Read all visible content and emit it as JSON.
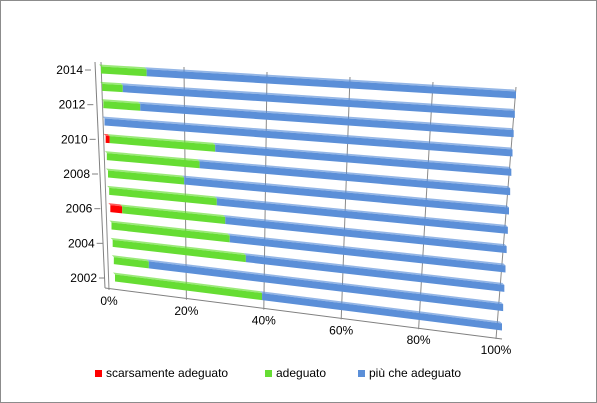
{
  "chart_data": {
    "type": "bar",
    "orientation": "horizontal",
    "stacked": "100%",
    "perspective": "3d",
    "categories": [
      "2002",
      "2003",
      "2004",
      "2005",
      "2006",
      "2007",
      "2008",
      "2009",
      "2010",
      "2011",
      "2012",
      "2013",
      "2014"
    ],
    "y_tick_labels": [
      "2002",
      "2004",
      "2006",
      "2008",
      "2010",
      "2012",
      "2014"
    ],
    "x_tick_labels": [
      "0%",
      "20%",
      "40%",
      "60%",
      "80%",
      "100%"
    ],
    "xlim": [
      0,
      100
    ],
    "grid": true,
    "legend_position": "bottom",
    "series": [
      {
        "name": "scarsamente adeguato",
        "color": "#ff0000",
        "values": [
          0,
          0,
          0,
          0,
          3,
          0,
          0,
          0,
          1,
          0,
          0,
          0,
          0
        ]
      },
      {
        "name": "adeguato",
        "color": "#66dd33",
        "values": [
          38,
          9,
          34,
          30,
          26,
          27,
          19,
          23,
          26,
          0,
          9,
          5,
          11
        ]
      },
      {
        "name": "più che adeguato",
        "color": "#5b8fd8",
        "values": [
          62,
          91,
          66,
          70,
          71,
          73,
          81,
          77,
          73,
          100,
          91,
          95,
          89
        ]
      }
    ]
  }
}
